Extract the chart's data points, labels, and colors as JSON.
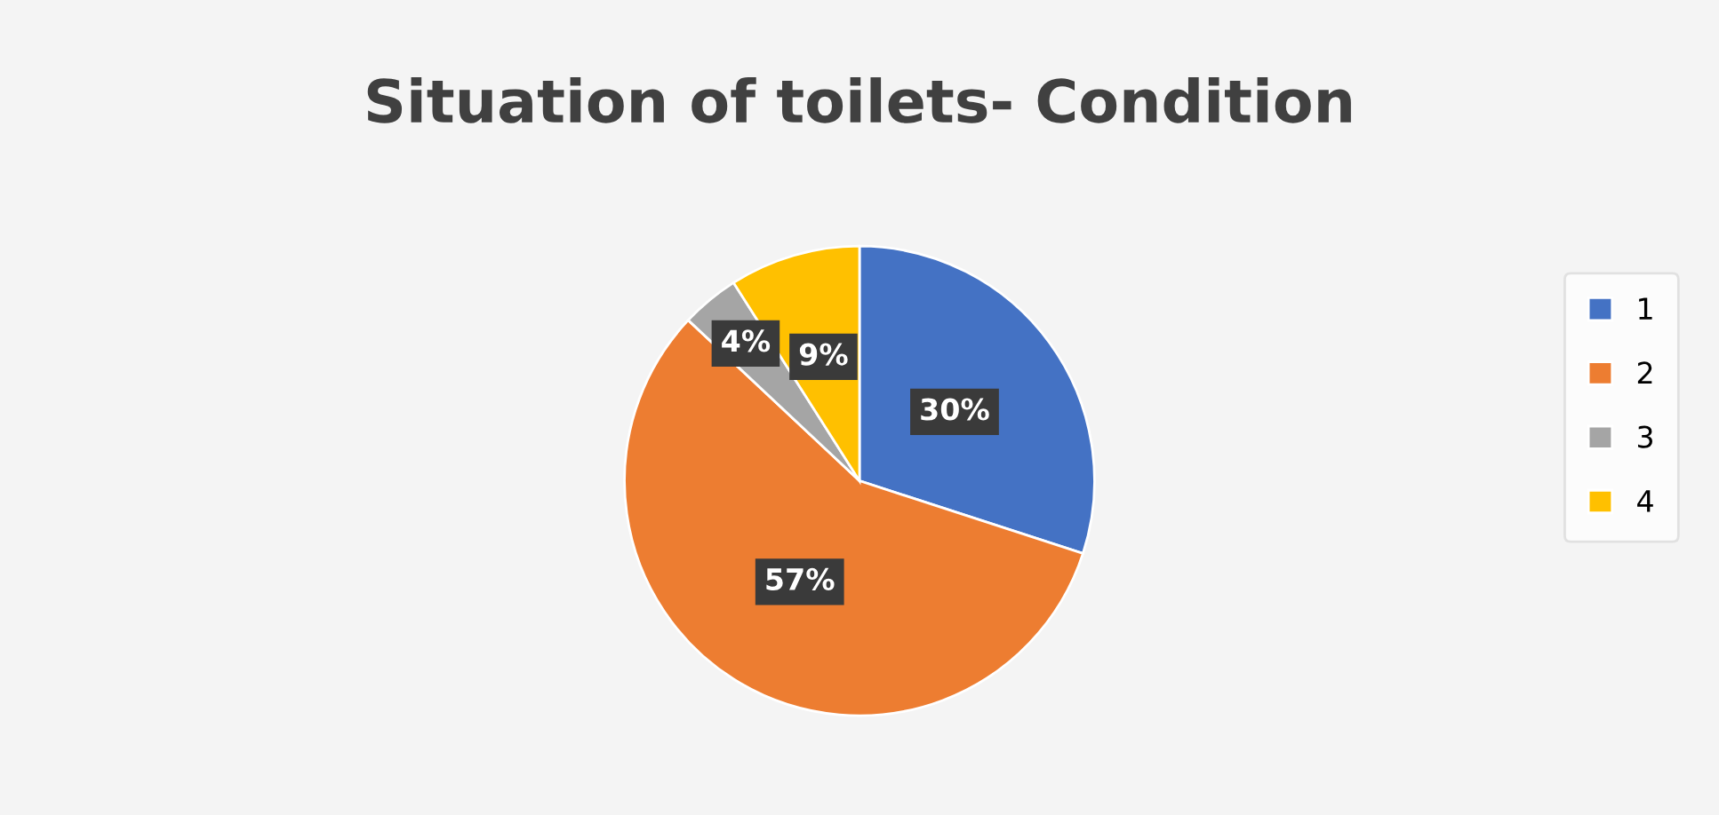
{
  "chart_data": {
    "type": "pie",
    "title": "Situation of toilets- Condition",
    "categories": [
      "1",
      "2",
      "3",
      "4"
    ],
    "values": [
      30,
      57,
      4,
      9
    ],
    "colors": [
      "#4472c4",
      "#ed7d31",
      "#a5a5a5",
      "#ffc000"
    ],
    "value_labels": [
      "30%",
      "57%",
      "4%",
      "9%"
    ],
    "legend": "right"
  }
}
